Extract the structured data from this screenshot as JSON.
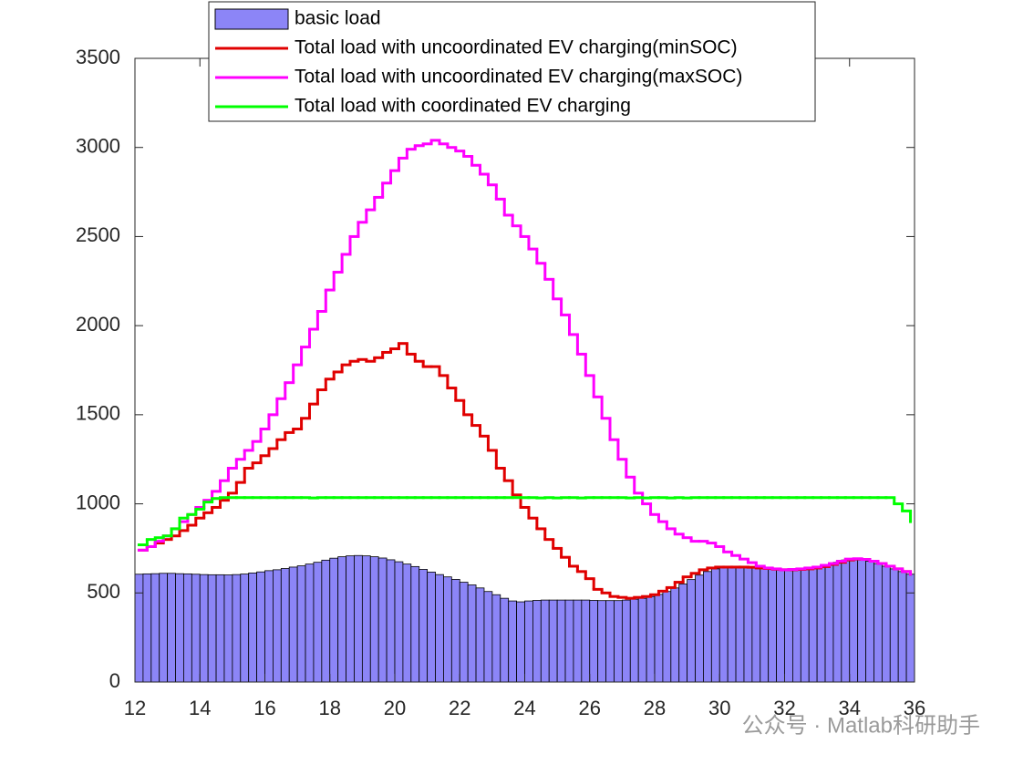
{
  "chart_data": {
    "type": "bar_stairs",
    "x": [
      12.125,
      12.375,
      12.625,
      12.875,
      13.125,
      13.375,
      13.625,
      13.875,
      14.125,
      14.375,
      14.625,
      14.875,
      15.125,
      15.375,
      15.625,
      15.875,
      16.125,
      16.375,
      16.625,
      16.875,
      17.125,
      17.375,
      17.625,
      17.875,
      18.125,
      18.375,
      18.625,
      18.875,
      19.125,
      19.375,
      19.625,
      19.875,
      20.125,
      20.375,
      20.625,
      20.875,
      21.125,
      21.375,
      21.625,
      21.875,
      22.125,
      22.375,
      22.625,
      22.875,
      23.125,
      23.375,
      23.625,
      23.875,
      24.125,
      24.375,
      24.625,
      24.875,
      25.125,
      25.375,
      25.625,
      25.875,
      26.125,
      26.375,
      26.625,
      26.875,
      27.125,
      27.375,
      27.625,
      27.875,
      28.125,
      28.375,
      28.625,
      28.875,
      29.125,
      29.375,
      29.625,
      29.875,
      30.125,
      30.375,
      30.625,
      30.875,
      31.125,
      31.375,
      31.625,
      31.875,
      32.125,
      32.375,
      32.625,
      32.875,
      33.125,
      33.375,
      33.625,
      33.875,
      34.125,
      34.375,
      34.625,
      34.875,
      35.125,
      35.375,
      35.625,
      35.875
    ],
    "series": [
      {
        "name": "basic load",
        "color": "#8c85f7",
        "kind": "bar",
        "values": [
          605,
          607,
          608,
          610,
          610,
          608,
          607,
          605,
          603,
          602,
          602,
          601,
          603,
          606,
          612,
          618,
          625,
          630,
          637,
          645,
          652,
          662,
          672,
          684,
          695,
          703,
          708,
          710,
          708,
          703,
          696,
          686,
          675,
          662,
          648,
          632,
          617,
          603,
          590,
          576,
          560,
          545,
          528,
          508,
          490,
          470,
          455,
          450,
          455,
          458,
          460,
          460,
          460,
          460,
          460,
          460,
          458,
          457,
          457,
          457,
          460,
          465,
          470,
          480,
          492,
          508,
          528,
          550,
          575,
          600,
          620,
          635,
          642,
          645,
          645,
          644,
          640,
          637,
          633,
          630,
          630,
          632,
          635,
          640,
          648,
          660,
          672,
          685,
          690,
          688,
          678,
          665,
          650,
          635,
          620,
          605
        ]
      },
      {
        "name": "Total load with uncoordinated EV charging(minSOC)",
        "color": "#e00000",
        "kind": "stairs",
        "values": [
          740,
          760,
          780,
          800,
          820,
          850,
          880,
          920,
          950,
          980,
          1020,
          1060,
          1120,
          1200,
          1230,
          1270,
          1310,
          1360,
          1400,
          1420,
          1480,
          1560,
          1640,
          1700,
          1740,
          1780,
          1800,
          1810,
          1800,
          1820,
          1850,
          1870,
          1900,
          1840,
          1800,
          1770,
          1770,
          1720,
          1650,
          1580,
          1500,
          1440,
          1380,
          1300,
          1200,
          1130,
          1050,
          980,
          920,
          860,
          800,
          750,
          700,
          650,
          620,
          580,
          520,
          500,
          480,
          475,
          470,
          475,
          480,
          490,
          510,
          530,
          560,
          590,
          610,
          630,
          640,
          645,
          645,
          645,
          645,
          644,
          640,
          637,
          633,
          630,
          630,
          632,
          635,
          640,
          648,
          660,
          672,
          685,
          690,
          688,
          678,
          665,
          650,
          635,
          620,
          605
        ]
      },
      {
        "name": "Total load with uncoordinated EV charging(maxSOC)",
        "color": "#ff00ff",
        "kind": "stairs",
        "values": [
          740,
          760,
          790,
          820,
          860,
          900,
          940,
          980,
          1020,
          1070,
          1130,
          1200,
          1250,
          1300,
          1350,
          1420,
          1500,
          1590,
          1680,
          1780,
          1880,
          1980,
          2080,
          2200,
          2300,
          2400,
          2500,
          2580,
          2650,
          2720,
          2800,
          2870,
          2940,
          2990,
          3010,
          3020,
          3040,
          3020,
          3000,
          2980,
          2950,
          2900,
          2850,
          2790,
          2710,
          2620,
          2560,
          2500,
          2430,
          2350,
          2260,
          2150,
          2060,
          1950,
          1840,
          1720,
          1600,
          1480,
          1360,
          1250,
          1150,
          1060,
          1000,
          940,
          900,
          860,
          830,
          810,
          790,
          790,
          780,
          760,
          730,
          710,
          690,
          670,
          650,
          640,
          635,
          630,
          632,
          635,
          640,
          645,
          655,
          665,
          678,
          690,
          692,
          688,
          678,
          665,
          650,
          635,
          620,
          605
        ]
      },
      {
        "name": "Total load with coordinated EV charging",
        "color": "#00ff00",
        "kind": "stairs",
        "values": [
          770,
          800,
          810,
          820,
          860,
          920,
          940,
          970,
          1010,
          1030,
          1035,
          1035,
          1035,
          1035,
          1035,
          1035,
          1035,
          1035,
          1035,
          1035,
          1035,
          1033,
          1035,
          1035,
          1035,
          1035,
          1035,
          1035,
          1035,
          1035,
          1035,
          1035,
          1035,
          1035,
          1035,
          1035,
          1035,
          1035,
          1035,
          1035,
          1035,
          1035,
          1035,
          1035,
          1035,
          1035,
          1035,
          1035,
          1035,
          1033,
          1035,
          1033,
          1035,
          1035,
          1033,
          1035,
          1035,
          1035,
          1035,
          1035,
          1033,
          1035,
          1033,
          1035,
          1035,
          1033,
          1035,
          1033,
          1035,
          1035,
          1035,
          1035,
          1035,
          1035,
          1035,
          1035,
          1035,
          1035,
          1035,
          1035,
          1035,
          1035,
          1035,
          1035,
          1035,
          1035,
          1035,
          1035,
          1035,
          1035,
          1035,
          1035,
          1035,
          1000,
          960,
          900
        ]
      }
    ],
    "xlim": [
      12,
      36
    ],
    "xticks": [
      12,
      14,
      16,
      18,
      20,
      22,
      24,
      26,
      28,
      30,
      32,
      34,
      36
    ],
    "ylim": [
      0,
      3500
    ],
    "yticks": [
      0,
      500,
      1000,
      1500,
      2000,
      2500,
      3000,
      3500
    ],
    "legend": "top"
  },
  "watermark": "公众号 · Matlab科研助手"
}
